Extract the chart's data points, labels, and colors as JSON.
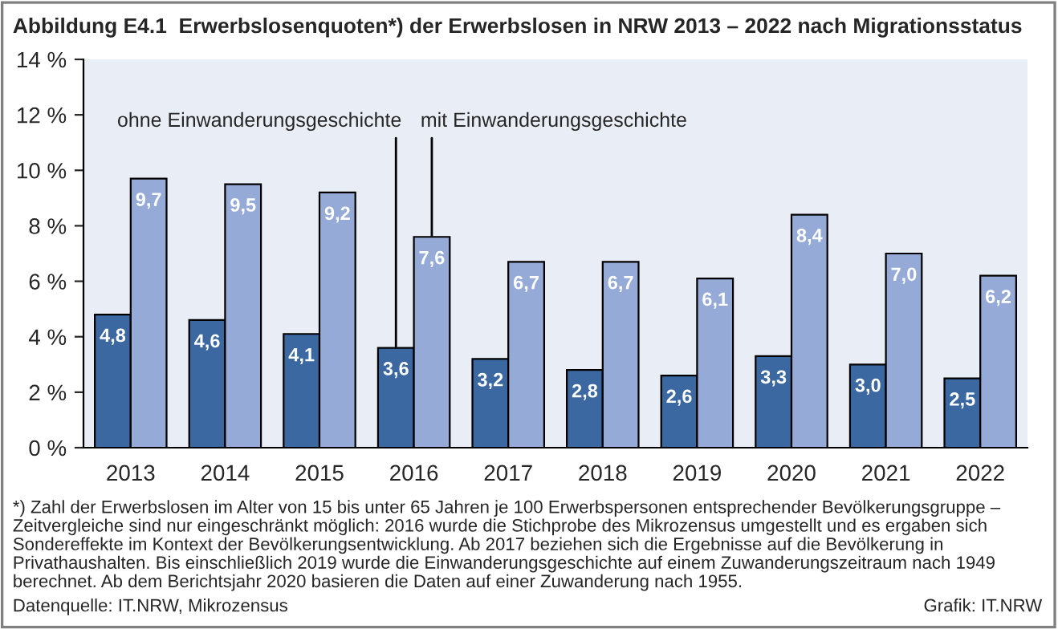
{
  "chart_data": {
    "type": "bar",
    "title": "Abbildung E4.1  Erwerbslosenquoten*) der Erwerbslosen in NRW 2013 – 2022 nach Migrationsstatus",
    "categories": [
      "2013",
      "2014",
      "2015",
      "2016",
      "2017",
      "2018",
      "2019",
      "2020",
      "2021",
      "2022"
    ],
    "series": [
      {
        "name": "ohne Einwanderungsgeschichte",
        "color": "#3b68a1",
        "values": [
          4.8,
          4.6,
          4.1,
          3.6,
          3.2,
          2.8,
          2.6,
          3.3,
          3.0,
          2.5
        ],
        "value_labels": [
          "4,8",
          "4,6",
          "4,1",
          "3,6",
          "3,2",
          "2,8",
          "2,6",
          "3,3",
          "3,0",
          "2,5"
        ]
      },
      {
        "name": "mit Einwanderungsgeschichte",
        "color": "#95aad6",
        "values": [
          9.7,
          9.5,
          9.2,
          7.6,
          6.7,
          6.7,
          6.1,
          8.4,
          7.0,
          6.2
        ],
        "value_labels": [
          "9,7",
          "9,5",
          "9,2",
          "7,6",
          "6,7",
          "6,7",
          "6,1",
          "8,4",
          "7,0",
          "6,2"
        ]
      }
    ],
    "ylim": [
      0,
      14
    ],
    "yticks": [
      {
        "value": 0,
        "label": "0 %"
      },
      {
        "value": 2,
        "label": "2 %"
      },
      {
        "value": 4,
        "label": "4 %"
      },
      {
        "value": 6,
        "label": "6 %"
      },
      {
        "value": 8,
        "label": "8 %"
      },
      {
        "value": 10,
        "label": "10 %"
      },
      {
        "value": 12,
        "label": "12 %"
      },
      {
        "value": 14,
        "label": "14 %"
      }
    ],
    "grid": false,
    "legend": false,
    "annotations": [
      "*) Zahl der Erwerbslosen im Alter von 15 bis unter 65 Jahren je 100 Erwerbspersonen entsprechender Bevölkerungsgruppe – Zeitvergleiche sind nur eingeschränkt möglich: 2016 wurde die Stichprobe des Mikrozensus umgestellt und es ergaben sich Sondereffekte im Kontext der Bevölkerungsentwicklung. Ab 2017 beziehen sich die Ergebnisse auf die Bevölkerung in Privathaushalten. Bis einschließlich 2019 wurde die Einwanderungsgeschichte auf einem Zuwanderungszeitraum nach 1949 berechnet. Ab dem Berichtsjahr 2020 basieren die Daten auf einer Zuwanderung nach 1955.",
      "Datenquelle: IT.NRW, Mikrozensus",
      "Grafik: IT.NRW"
    ]
  }
}
